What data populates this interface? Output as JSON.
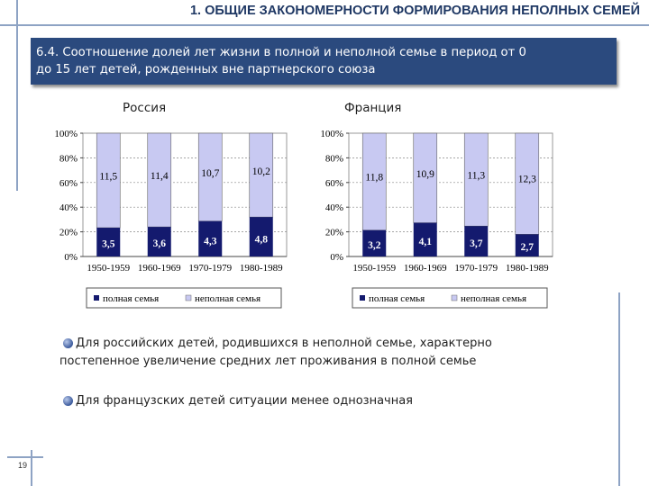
{
  "header": {
    "title": "1. ОБЩИЕ ЗАКОНОМЕРНОСТИ ФОРМИРОВАНИЯ НЕПОЛНЫХ СЕМЕЙ"
  },
  "banner": {
    "line1": "6.4. Соотношение долей лет жизни в полной и неполной семье  в период от 0",
    "line2": "до 15 лет детей, рожденных вне партнерского союза"
  },
  "colors": {
    "full_family": "#141a6e",
    "incomplete_family": "#c8c9f2",
    "banner": "#2b4a7e",
    "title": "#1f3864"
  },
  "chart_data": [
    {
      "type": "bar",
      "stacked": true,
      "title": "Россия",
      "categories": [
        "1950-1959",
        "1960-1969",
        "1970-1979",
        "1980-1989"
      ],
      "series": [
        {
          "name": "полная семья",
          "values": [
            3.5,
            3.6,
            4.3,
            4.8
          ],
          "labels": [
            "3,5",
            "3,6",
            "4,3",
            "4,8"
          ]
        },
        {
          "name": "неполная семья",
          "values": [
            11.5,
            11.4,
            10.7,
            10.2
          ],
          "labels": [
            "11,5",
            "11,4",
            "10,7",
            "10,2"
          ]
        }
      ],
      "ylim": [
        0,
        100
      ],
      "yticks": [
        "0%",
        "20%",
        "40%",
        "60%",
        "80%",
        "100%"
      ],
      "legend": "bottom"
    },
    {
      "type": "bar",
      "stacked": true,
      "title": "Франция",
      "categories": [
        "1950-1959",
        "1960-1969",
        "1970-1979",
        "1980-1989"
      ],
      "series": [
        {
          "name": "полная семья",
          "values": [
            3.2,
            4.1,
            3.7,
            2.7
          ],
          "labels": [
            "3,2",
            "4,1",
            "3,7",
            "2,7"
          ]
        },
        {
          "name": "неполная семья",
          "values": [
            11.8,
            10.9,
            11.3,
            12.3
          ],
          "labels": [
            "11,8",
            "10,9",
            "11,3",
            "12,3"
          ]
        }
      ],
      "ylim": [
        0,
        100
      ],
      "yticks": [
        "0%",
        "20%",
        "40%",
        "60%",
        "80%",
        "100%"
      ],
      "legend": "bottom"
    }
  ],
  "bullets": [
    {
      "line1": "Для российских детей, родившихся в неполной семье, характерно",
      "line2": "постепенное увеличение средних лет проживания в полной семье"
    },
    {
      "line1": "Для французских детей ситуации менее однозначная",
      "line2": ""
    }
  ],
  "footer": {
    "page_number": "19"
  }
}
